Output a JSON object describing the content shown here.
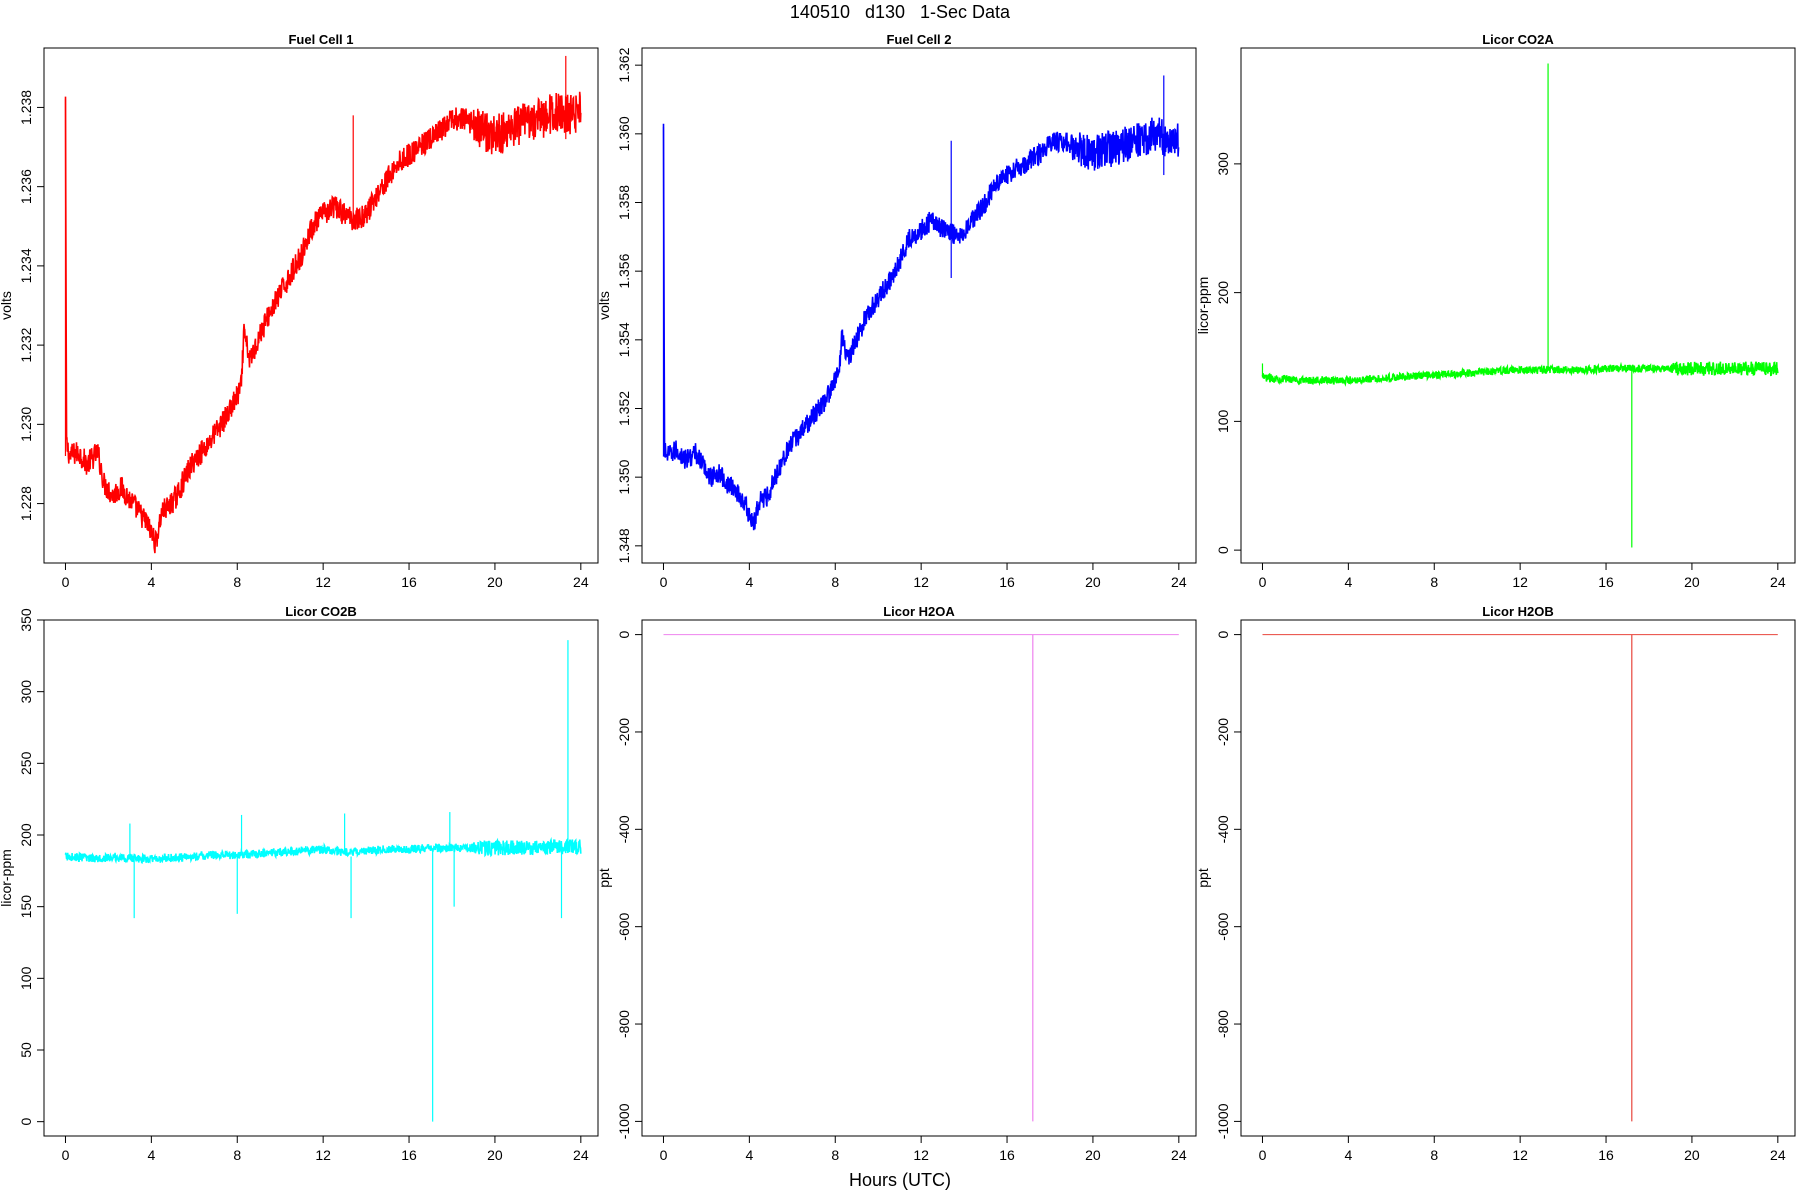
{
  "figure_title": "140510   d130   1-Sec Data",
  "x_axis_label": "Hours (UTC)",
  "chart_data": [
    {
      "type": "line",
      "title": "Fuel Cell 1",
      "xlabel": "",
      "ylabel": "volts",
      "color": "#ff0000",
      "xlim": [
        -1,
        24.8
      ],
      "ylim": [
        1.2265,
        1.2395
      ],
      "x_ticks": [
        0,
        4,
        8,
        12,
        16,
        20,
        24
      ],
      "y_ticks": [
        1.228,
        1.23,
        1.232,
        1.234,
        1.236,
        1.238
      ],
      "y_tick_labels": [
        "1.228",
        "1.230",
        "1.232",
        "1.234",
        "1.236",
        "1.238"
      ],
      "x": [
        0,
        0.05,
        0.2,
        0.6,
        1.0,
        1.5,
        1.8,
        2.2,
        2.6,
        3.0,
        3.4,
        3.8,
        4.2,
        4.5,
        4.8,
        5.2,
        5.6,
        6.0,
        6.5,
        7.0,
        7.5,
        8.0,
        8.2,
        8.3,
        8.6,
        9.0,
        9.5,
        10.0,
        10.5,
        11.0,
        11.5,
        12.0,
        12.5,
        13.0,
        13.3,
        13.7,
        14.0,
        14.5,
        15.0,
        15.5,
        16.0,
        16.5,
        17.0,
        17.5,
        18.0,
        18.5,
        19.0,
        19.5,
        20.0,
        20.5,
        21.0,
        21.5,
        22.0,
        22.5,
        23.0,
        23.5,
        24.0
      ],
      "values": [
        1.2382,
        1.2295,
        1.2292,
        1.2293,
        1.229,
        1.2293,
        1.2285,
        1.2282,
        1.2284,
        1.2281,
        1.2278,
        1.2275,
        1.227,
        1.2278,
        1.2279,
        1.2282,
        1.2287,
        1.2291,
        1.2294,
        1.2298,
        1.2302,
        1.2307,
        1.231,
        1.2323,
        1.2316,
        1.2322,
        1.2328,
        1.2333,
        1.2338,
        1.2343,
        1.235,
        1.2353,
        1.2355,
        1.2353,
        1.2352,
        1.2352,
        1.2353,
        1.2358,
        1.2362,
        1.2366,
        1.2368,
        1.237,
        1.2372,
        1.2374,
        1.2377,
        1.2377,
        1.2376,
        1.2374,
        1.2373,
        1.2374,
        1.2375,
        1.2376,
        1.2377,
        1.2378,
        1.2379,
        1.2378,
        1.2379
      ],
      "noise": 0.0003,
      "spikes": [
        {
          "x": 0,
          "y0": 1.2292,
          "y1": 1.2382
        },
        {
          "x": 13.4,
          "y0": 1.2352,
          "y1": 1.2378
        },
        {
          "x": 23.3,
          "y0": 1.2372,
          "y1": 1.2393
        }
      ]
    },
    {
      "type": "line",
      "title": "Fuel Cell 2",
      "xlabel": "",
      "ylabel": "volts",
      "color": "#0000ff",
      "xlim": [
        -1,
        24.8
      ],
      "ylim": [
        1.3475,
        1.3625
      ],
      "x_ticks": [
        0,
        4,
        8,
        12,
        16,
        20,
        24
      ],
      "y_ticks": [
        1.348,
        1.35,
        1.352,
        1.354,
        1.356,
        1.358,
        1.36,
        1.362
      ],
      "y_tick_labels": [
        "1.348",
        "1.350",
        "1.352",
        "1.354",
        "1.356",
        "1.358",
        "1.360",
        "1.362"
      ],
      "x": [
        0,
        0.05,
        0.2,
        0.6,
        1.0,
        1.5,
        1.8,
        2.2,
        2.6,
        3.0,
        3.4,
        3.8,
        4.2,
        4.5,
        4.8,
        5.2,
        5.6,
        6.0,
        6.5,
        7.0,
        7.5,
        8.0,
        8.2,
        8.3,
        8.6,
        9.0,
        9.5,
        10.0,
        10.5,
        11.0,
        11.5,
        12.0,
        12.5,
        13.0,
        13.3,
        13.7,
        14.0,
        14.5,
        15.0,
        15.5,
        16.0,
        16.5,
        17.0,
        17.5,
        18.0,
        18.5,
        19.0,
        19.5,
        20.0,
        20.5,
        21.0,
        21.5,
        22.0,
        22.5,
        23.0,
        23.5,
        24.0
      ],
      "values": [
        1.3602,
        1.3508,
        1.3506,
        1.3508,
        1.3505,
        1.3507,
        1.3504,
        1.35,
        1.3501,
        1.3498,
        1.3496,
        1.3492,
        1.3486,
        1.3494,
        1.3494,
        1.35,
        1.3506,
        1.351,
        1.3514,
        1.3518,
        1.3522,
        1.3528,
        1.3532,
        1.3542,
        1.3534,
        1.354,
        1.3548,
        1.3552,
        1.3557,
        1.3563,
        1.357,
        1.3572,
        1.3575,
        1.3572,
        1.3572,
        1.357,
        1.3572,
        1.3576,
        1.358,
        1.3586,
        1.3588,
        1.359,
        1.3592,
        1.3594,
        1.3597,
        1.3598,
        1.3597,
        1.3595,
        1.3594,
        1.3595,
        1.3596,
        1.3597,
        1.3598,
        1.3599,
        1.36,
        1.3598,
        1.3598
      ],
      "noise": 0.0003,
      "spikes": [
        {
          "x": 0,
          "y0": 1.3506,
          "y1": 1.3602
        },
        {
          "x": 13.4,
          "y0": 1.3558,
          "y1": 1.3598
        },
        {
          "x": 23.3,
          "y0": 1.3588,
          "y1": 1.3617
        }
      ]
    },
    {
      "type": "line",
      "title": "Licor CO2A",
      "xlabel": "",
      "ylabel": "licor-ppm",
      "color": "#00ff00",
      "xlim": [
        -1,
        24.8
      ],
      "ylim": [
        -10,
        390
      ],
      "x_ticks": [
        0,
        4,
        8,
        12,
        16,
        20,
        24
      ],
      "y_ticks": [
        0,
        100,
        200,
        300
      ],
      "y_tick_labels": [
        "0",
        "100",
        "200",
        "300"
      ],
      "x": [
        0,
        1,
        2,
        3,
        4,
        5,
        6,
        7,
        8,
        9,
        10,
        11,
        12,
        13,
        14,
        15,
        16,
        17,
        18,
        19,
        20,
        21,
        22,
        23,
        24
      ],
      "values": [
        134,
        133,
        132,
        132,
        132,
        133,
        134,
        135,
        136,
        137,
        138,
        139,
        140,
        140,
        140,
        140,
        141,
        141,
        141,
        141,
        141,
        141,
        141,
        141,
        141
      ],
      "noise": 3,
      "spikes": [
        {
          "x": 0,
          "y0": 134,
          "y1": 145
        },
        {
          "x": 13.3,
          "y0": 140,
          "y1": 378
        },
        {
          "x": 17.2,
          "y0": 141,
          "y1": 2
        }
      ]
    },
    {
      "type": "line",
      "title": "Licor CO2B",
      "xlabel": "",
      "ylabel": "licor-ppm",
      "color": "#00ffff",
      "xlim": [
        -1,
        24.8
      ],
      "ylim": [
        -10,
        350
      ],
      "x_ticks": [
        0,
        4,
        8,
        12,
        16,
        20,
        24
      ],
      "y_ticks": [
        0,
        50,
        100,
        150,
        200,
        250,
        300,
        350
      ],
      "y_tick_labels": [
        "0",
        "50",
        "100",
        "150",
        "200",
        "250",
        "300",
        "350"
      ],
      "x": [
        0,
        1,
        2,
        3,
        4,
        5,
        6,
        7,
        8,
        9,
        10,
        11,
        12,
        13,
        14,
        15,
        16,
        17,
        18,
        19,
        20,
        21,
        22,
        23,
        24
      ],
      "values": [
        185,
        184,
        184,
        184,
        183,
        184,
        185,
        186,
        186,
        187,
        188,
        189,
        190,
        188,
        189,
        190,
        190,
        191,
        191,
        191,
        191,
        191,
        191,
        192,
        192
      ],
      "noise": 3,
      "spikes": [
        {
          "x": 3.0,
          "y0": 185,
          "y1": 208
        },
        {
          "x": 3.2,
          "y0": 185,
          "y1": 142
        },
        {
          "x": 8.0,
          "y0": 186,
          "y1": 145
        },
        {
          "x": 8.2,
          "y0": 186,
          "y1": 214
        },
        {
          "x": 13.0,
          "y0": 190,
          "y1": 215
        },
        {
          "x": 13.3,
          "y0": 185,
          "y1": 142
        },
        {
          "x": 17.1,
          "y0": 191,
          "y1": 0
        },
        {
          "x": 17.9,
          "y0": 191,
          "y1": 216
        },
        {
          "x": 18.1,
          "y0": 191,
          "y1": 150
        },
        {
          "x": 23.1,
          "y0": 192,
          "y1": 142
        },
        {
          "x": 23.4,
          "y0": 192,
          "y1": 336
        }
      ]
    },
    {
      "type": "line",
      "title": "Licor H2OA",
      "xlabel": "",
      "ylabel": "ppt",
      "color": "#ee82ee",
      "xlim": [
        -1,
        24.8
      ],
      "ylim": [
        -1030,
        30
      ],
      "x_ticks": [
        0,
        4,
        8,
        12,
        16,
        20,
        24
      ],
      "y_ticks": [
        -1000,
        -800,
        -600,
        -400,
        -200,
        0
      ],
      "y_tick_labels": [
        "-1000",
        "-800",
        "-600",
        "-400",
        "-200",
        "0"
      ],
      "x": [
        0,
        24
      ],
      "values": [
        0,
        0
      ],
      "noise": 0,
      "spikes": [
        {
          "x": 17.2,
          "y0": 0,
          "y1": -1000
        }
      ]
    },
    {
      "type": "line",
      "title": "Licor H2OB",
      "xlabel": "",
      "ylabel": "ppt",
      "color": "#e8453c",
      "xlim": [
        -1,
        24.8
      ],
      "ylim": [
        -1030,
        30
      ],
      "x_ticks": [
        0,
        4,
        8,
        12,
        16,
        20,
        24
      ],
      "y_ticks": [
        -1000,
        -800,
        -600,
        -400,
        -200,
        0
      ],
      "y_tick_labels": [
        "-1000",
        "-800",
        "-600",
        "-400",
        "-200",
        "0"
      ],
      "x": [
        0,
        24
      ],
      "values": [
        0,
        0
      ],
      "noise": 0,
      "spikes": [
        {
          "x": 17.2,
          "y0": 0,
          "y1": -1000
        }
      ]
    }
  ]
}
